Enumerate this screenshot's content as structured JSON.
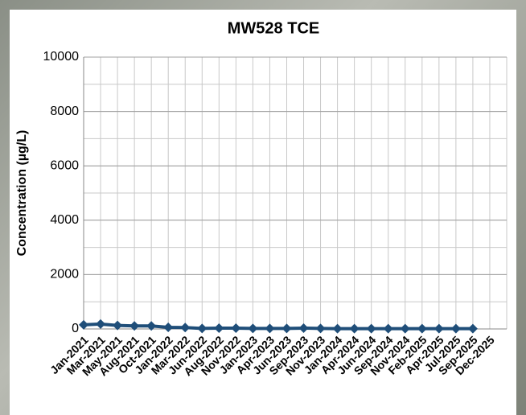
{
  "chart_data": {
    "type": "line",
    "title": "MW528 TCE",
    "y_label": "Concentration (µg/L)",
    "categories": [
      "Jan-2021",
      "Mar-2021",
      "May-2021",
      "Aug-2021",
      "Oct-2021",
      "Jan-2022",
      "Mar-2022",
      "Jun-2022",
      "Aug-2022",
      "Nov-2022",
      "Jan-2023",
      "Apr-2023",
      "Jun-2023",
      "Sep-2023",
      "Nov-2023",
      "Jan-2024",
      "Apr-2024",
      "Jun-2024",
      "Sep-2024",
      "Nov-2024",
      "Feb-2025",
      "Apr-2025",
      "Jul-2025",
      "Sep-2025",
      "Dec-2025"
    ],
    "series": [
      {
        "name": "TCE",
        "color": "#1f4e79",
        "values": [
          150,
          180,
          130,
          110,
          110,
          60,
          50,
          20,
          30,
          30,
          20,
          20,
          20,
          30,
          20,
          10,
          10,
          10,
          10,
          10,
          10,
          10,
          10,
          10,
          null
        ]
      }
    ],
    "ylim": [
      0,
      10000
    ],
    "yticks": [
      0,
      2000,
      4000,
      6000,
      8000,
      10000
    ],
    "minor_step": 1000,
    "grid": true
  }
}
